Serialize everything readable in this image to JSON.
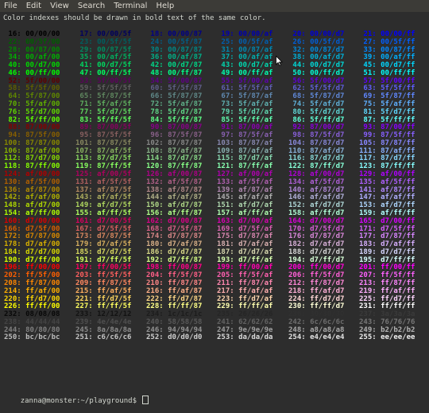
{
  "menubar": {
    "items": [
      "File",
      "Edit",
      "View",
      "Search",
      "Terminal",
      "Help"
    ]
  },
  "terminal": {
    "header_line": "Color indexes should be drawn in bold text of the same color.",
    "prompt": {
      "user_host": "zanna@monster",
      "path": ":~/playground$ "
    }
  },
  "palette": {
    "levels": [
      "00",
      "5f",
      "87",
      "af",
      "d7",
      "ff"
    ],
    "gray_levels": [
      "08",
      "12",
      "1c",
      "26",
      "30",
      "3a",
      "44",
      "4e",
      "58",
      "62",
      "6c",
      "76",
      "80",
      "8a",
      "94",
      "9e",
      "a8",
      "b2",
      "bc",
      "c6",
      "d0",
      "da",
      "e4",
      "ee"
    ],
    "start_index": 16,
    "end_index": 255,
    "columns": 6,
    "background": "#2d2d2d",
    "text_color": "#d3d7cf"
  }
}
